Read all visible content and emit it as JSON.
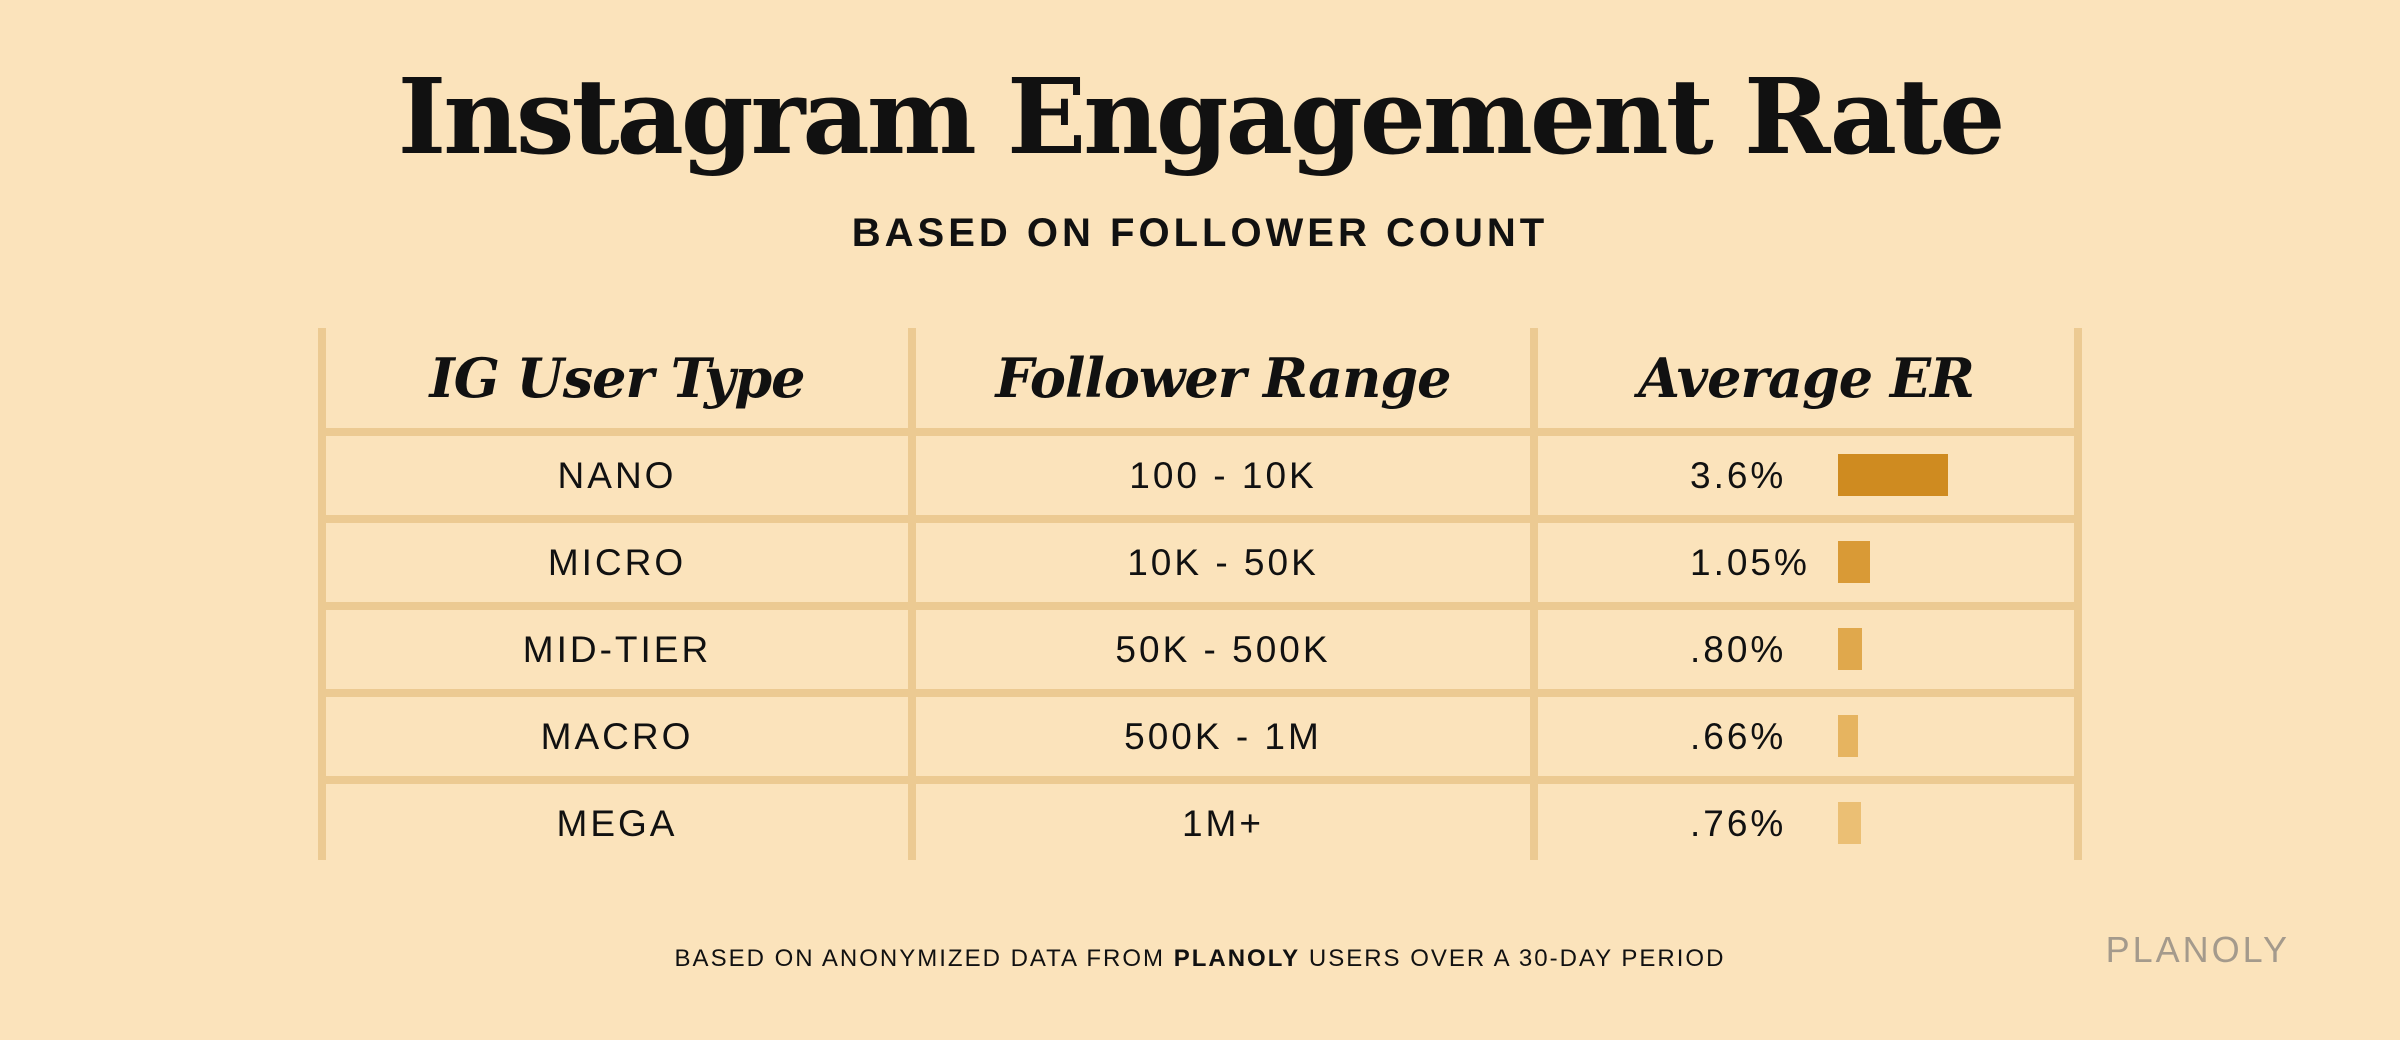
{
  "title": "Instagram Engagement Rate",
  "subtitle": "BASED ON FOLLOWER COUNT",
  "table": {
    "headers": [
      "IG User Type",
      "Follower Range",
      "Average ER"
    ]
  },
  "chart_data": {
    "type": "table",
    "title": "Instagram Engagement Rate",
    "subtitle": "BASED ON FOLLOWER COUNT",
    "columns": [
      "IG User Type",
      "Follower Range",
      "Average ER"
    ],
    "rows": [
      {
        "user_type": "NANO",
        "follower_range": "100 - 10K",
        "average_er_label": "3.6%",
        "average_er": 3.6,
        "bar_color": "#cf8b20"
      },
      {
        "user_type": "MICRO",
        "follower_range": "10K - 50K",
        "average_er_label": "1.05%",
        "average_er": 1.05,
        "bar_color": "#d99a36"
      },
      {
        "user_type": "MID-TIER",
        "follower_range": "50K - 500K",
        "average_er_label": ".80%",
        "average_er": 0.8,
        "bar_color": "#e0a84c"
      },
      {
        "user_type": "MACRO",
        "follower_range": "500K - 1M",
        "average_er_label": ".66%",
        "average_er": 0.66,
        "bar_color": "#e6b460"
      },
      {
        "user_type": "MEGA",
        "follower_range": "1M+",
        "average_er_label": ".76%",
        "average_er": 0.76,
        "bar_color": "#ebbf74"
      }
    ],
    "bar_max": 3.6
  },
  "footnote": {
    "prefix": "BASED ON ANONYMIZED DATA FROM ",
    "brand": "PLANOLY",
    "suffix": " USERS OVER A 30-DAY PERIOD"
  },
  "brand_logo": "PLANOLY"
}
